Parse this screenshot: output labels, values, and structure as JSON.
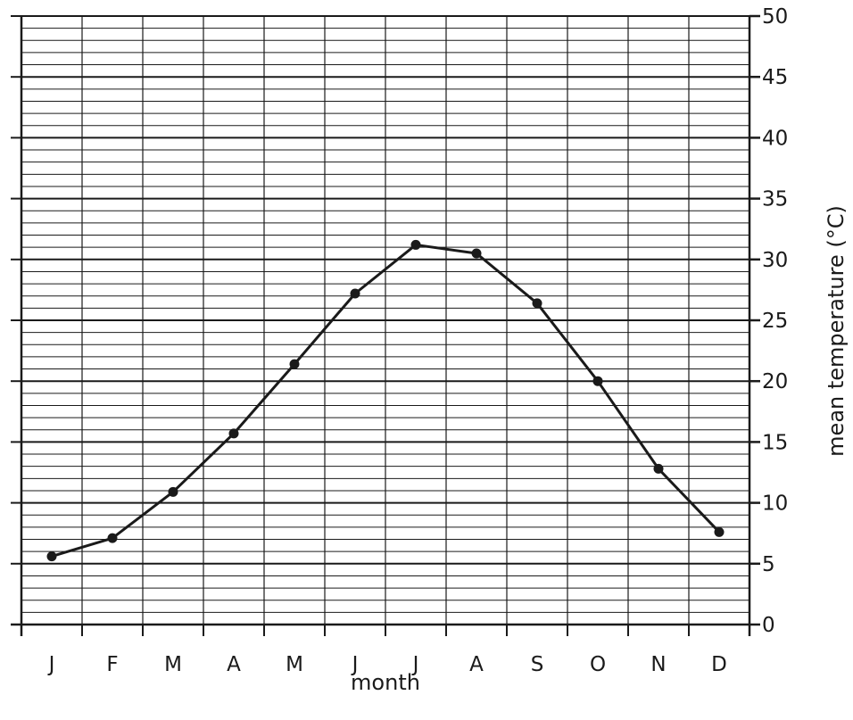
{
  "chart_data": {
    "type": "line",
    "title": "",
    "xlabel": "month",
    "ylabel": "mean temperature (°C)",
    "categories": [
      "J",
      "F",
      "M",
      "A",
      "M",
      "J",
      "J",
      "A",
      "S",
      "O",
      "N",
      "D"
    ],
    "series": [
      {
        "values": [
          5.6,
          7.1,
          10.9,
          15.7,
          21.4,
          27.2,
          31.2,
          30.5,
          26.4,
          20.0,
          12.8,
          7.6
        ]
      }
    ],
    "ylim": [
      0,
      50
    ],
    "y_major_ticks": [
      0,
      5,
      10,
      15,
      20,
      25,
      30,
      35,
      40,
      45,
      50
    ],
    "y_minor_step": 1,
    "y_axis_side": "right",
    "grid": true,
    "line_color": "#1a1a1a",
    "grid_color": "#1a1a1a"
  }
}
